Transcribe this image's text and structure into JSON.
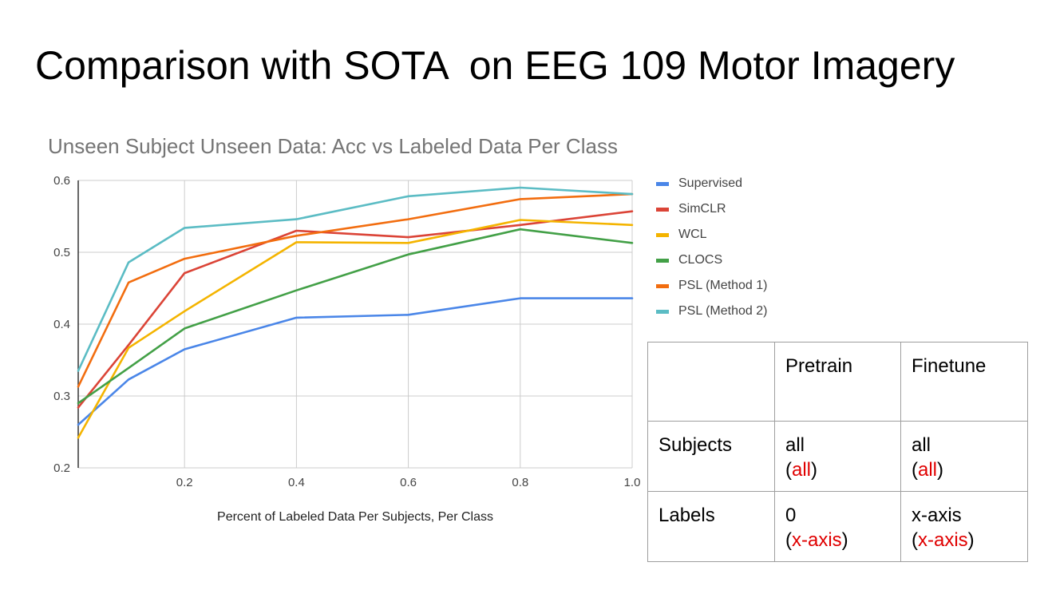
{
  "slide": {
    "title": "Comparison with SOTA  on EEG 109 Motor Imagery"
  },
  "chart_data": {
    "type": "line",
    "title": "Unseen Subject Unseen Data: Acc vs Labeled Data Per Class",
    "xlabel": "Percent of Labeled Data Per Subjects, Per Class",
    "ylabel": "",
    "x": [
      0.01,
      0.1,
      0.2,
      0.4,
      0.6,
      0.8,
      1.0
    ],
    "xlim": [
      0.01,
      1.0
    ],
    "ylim": [
      0.2,
      0.6
    ],
    "xticks": [
      "0.2",
      "0.4",
      "0.6",
      "0.8",
      "1.0"
    ],
    "xtick_values": [
      0.2,
      0.4,
      0.6,
      0.8,
      1.0
    ],
    "yticks": [
      "0.2",
      "0.3",
      "0.4",
      "0.5",
      "0.6"
    ],
    "ytick_values": [
      0.2,
      0.3,
      0.4,
      0.5,
      0.6
    ],
    "grid": true,
    "legend_position": "right",
    "series": [
      {
        "name": "Supervised",
        "color": "#4a86e8",
        "values": [
          0.26,
          0.323,
          0.365,
          0.409,
          0.413,
          0.436,
          0.436
        ]
      },
      {
        "name": "SimCLR",
        "color": "#db4437",
        "values": [
          0.284,
          0.371,
          0.471,
          0.53,
          0.521,
          0.538,
          0.557
        ]
      },
      {
        "name": "WCL",
        "color": "#f4b400",
        "values": [
          0.242,
          0.367,
          0.418,
          0.514,
          0.513,
          0.545,
          0.538
        ]
      },
      {
        "name": "CLOCS",
        "color": "#43a047",
        "values": [
          0.29,
          0.339,
          0.394,
          0.447,
          0.497,
          0.532,
          0.513
        ]
      },
      {
        "name": "PSL (Method 1)",
        "color": "#f26d0f",
        "values": [
          0.313,
          0.458,
          0.491,
          0.523,
          0.546,
          0.574,
          0.581
        ]
      },
      {
        "name": "PSL (Method 2)",
        "color": "#5bbcc4",
        "values": [
          0.335,
          0.486,
          0.534,
          0.546,
          0.578,
          0.59,
          0.581
        ]
      }
    ]
  },
  "table": {
    "headers": [
      "",
      "Pretrain",
      "Finetune"
    ],
    "rows": [
      {
        "label": "Subjects",
        "pretrain": "all",
        "pretrain_note": "all",
        "finetune": "all",
        "finetune_note": "all"
      },
      {
        "label": "Labels",
        "pretrain": "0",
        "pretrain_note": "x-axis",
        "finetune": "x-axis",
        "finetune_note": "x-axis"
      }
    ]
  }
}
